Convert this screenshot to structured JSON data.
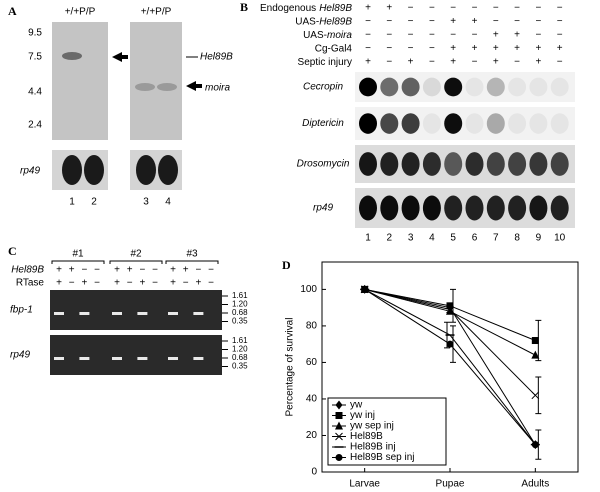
{
  "panel_a": {
    "letter": "A",
    "lane_headers": [
      "+/+P/P",
      "+/+P/P"
    ],
    "size_markers": [
      "9.5",
      "7.5",
      "4.4",
      "2.4"
    ],
    "arrow_labels": [
      "Hel89B",
      "moira"
    ],
    "probe": "rp49",
    "lanes": [
      "1",
      "2",
      "3",
      "4"
    ]
  },
  "panel_b": {
    "letter": "B",
    "rows": [
      {
        "parts": [
          {
            "text": "Endogenous"
          },
          {
            "text": "Hel89B",
            "italic": true
          }
        ],
        "signs": [
          "+",
          "+",
          "−",
          "−",
          "−",
          "−",
          "−",
          "−",
          "−",
          "−"
        ]
      },
      {
        "parts": [
          {
            "text": "UAS-"
          },
          {
            "text": "Hel89B",
            "italic": true
          }
        ],
        "signs": [
          "−",
          "−",
          "−",
          "−",
          "+",
          "+",
          "−",
          "−",
          "−",
          "−"
        ]
      },
      {
        "parts": [
          {
            "text": "UAS-"
          },
          {
            "text": "moira",
            "italic": true
          }
        ],
        "signs": [
          "−",
          "−",
          "−",
          "−",
          "−",
          "−",
          "+",
          "+",
          "−",
          "−"
        ]
      },
      {
        "parts": [
          {
            "text": "Cg-Gal4"
          }
        ],
        "signs": [
          "−",
          "−",
          "−",
          "−",
          "+",
          "+",
          "+",
          "+",
          "+",
          "+"
        ]
      },
      {
        "parts": [
          {
            "text": "Septic injury"
          }
        ],
        "signs": [
          "+",
          "−",
          "+",
          "−",
          "+",
          "−",
          "+",
          "−",
          "+",
          "−"
        ]
      }
    ],
    "blots": [
      "Cecropin",
      "Diptericin",
      "Drosomycin",
      "rp49"
    ],
    "lanes": [
      "1",
      "2",
      "3",
      "4",
      "5",
      "6",
      "7",
      "8",
      "9",
      "10"
    ]
  },
  "panel_c": {
    "letter": "C",
    "groups": [
      "#1",
      "#2",
      "#3"
    ],
    "rows": [
      {
        "label": "Hel89B",
        "signs": [
          "+",
          "+",
          "−",
          "−",
          "+",
          "+",
          "−",
          "−",
          "+",
          "+",
          "−",
          "−"
        ]
      },
      {
        "label": "RTase",
        "signs": [
          "+",
          "−",
          "+",
          "−",
          "+",
          "−",
          "+",
          "−",
          "+",
          "−",
          "+",
          "−"
        ]
      }
    ],
    "gels": [
      "fbp-1",
      "rp49"
    ],
    "size_markers": [
      "1.61",
      "1.20",
      "0.68",
      "0.35"
    ]
  },
  "chart_data": {
    "type": "line",
    "letter": "D",
    "y_label": "Percentage of survival",
    "categories": [
      "Larvae",
      "Pupae",
      "Adults"
    ],
    "ylim": [
      0,
      115
    ],
    "yticks": [
      0,
      20,
      40,
      60,
      80,
      100
    ],
    "series": [
      {
        "name": "yw",
        "color": "#000000",
        "marker": "diamond",
        "values": [
          100,
          90,
          15
        ],
        "errors": [
          null,
          null,
          null
        ]
      },
      {
        "name": "yw inj",
        "color": "#000000",
        "marker": "square",
        "values": [
          100,
          91,
          72
        ],
        "errors": [
          null,
          9,
          11
        ]
      },
      {
        "name": "yw sep inj",
        "color": "#000000",
        "marker": "triangle",
        "values": [
          100,
          88,
          64
        ],
        "errors": [
          null,
          null,
          null
        ]
      },
      {
        "name": "Hel89B",
        "color": "#000000",
        "marker": "x",
        "values": [
          100,
          89,
          42
        ],
        "errors": [
          null,
          null,
          10
        ]
      },
      {
        "name": "Hel89B inj",
        "color": "#000000",
        "marker": "dash",
        "values": [
          100,
          75,
          15
        ],
        "errors": [
          null,
          7,
          null
        ]
      },
      {
        "name": "Hel89B sep inj",
        "color": "#000000",
        "marker": "circle",
        "values": [
          100,
          70,
          15
        ],
        "errors": [
          null,
          10,
          8
        ]
      }
    ]
  }
}
